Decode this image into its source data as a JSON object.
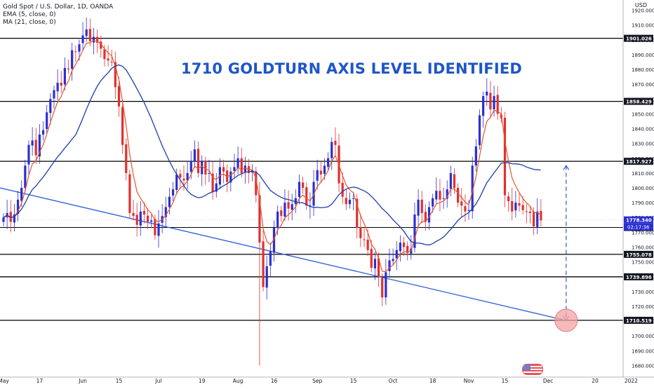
{
  "header": {
    "symbol_line": "Gold Spot / U.S. Dollar, 1D, OANDA",
    "ema_line": "EMA (5, close, 0)",
    "ma_line": "MA (21, close, 0)",
    "currency": "USD"
  },
  "annotation": {
    "headline": "1710 GOLDTURN AXIS LEVEL IDENTIFIED"
  },
  "colors": {
    "up": "#2b2fd1",
    "down": "#e0302f",
    "ema": "#e8552b",
    "ma": "#1c3fa8",
    "trendline": "#2a5bd7",
    "hline": "#000000",
    "target_circle": "#f4a3a3"
  },
  "chart_data": {
    "type": "candlestick",
    "title": "1710 GOLDTURN AXIS LEVEL IDENTIFIED",
    "ylim": [
      1675,
      1925
    ],
    "y_ticks": [
      1680,
      1690,
      1700,
      1710,
      1720,
      1730,
      1740,
      1750,
      1760,
      1770,
      1780,
      1790,
      1800,
      1810,
      1820,
      1830,
      1840,
      1850,
      1860,
      1870,
      1880,
      1890,
      1900,
      1910,
      1920
    ],
    "x_tick_labels": [
      {
        "label": "May",
        "index": 0
      },
      {
        "label": "17",
        "index": 10
      },
      {
        "label": "Jun",
        "index": 22
      },
      {
        "label": "15",
        "index": 32
      },
      {
        "label": "Jul",
        "index": 43
      },
      {
        "label": "19",
        "index": 55
      },
      {
        "label": "Aug",
        "index": 65
      },
      {
        "label": "16",
        "index": 75
      },
      {
        "label": "Sep",
        "index": 87
      },
      {
        "label": "15",
        "index": 97
      },
      {
        "label": "Oct",
        "index": 108
      },
      {
        "label": "18",
        "index": 119
      },
      {
        "label": "Nov",
        "index": 129
      },
      {
        "label": "15",
        "index": 139
      },
      {
        "label": "Dec",
        "index": 151
      },
      {
        "label": "20",
        "index": 164
      },
      {
        "label": "2022",
        "index": 174
      },
      {
        "label": "17",
        "index": 184
      }
    ],
    "horizontal_levels": [
      1901.026,
      1858.429,
      1817.927,
      1755.078,
      1739.896,
      1710.519
    ],
    "price_labels": [
      {
        "value": 1901.026,
        "text": "1901.026",
        "style": "black"
      },
      {
        "value": 1858.429,
        "text": "1858.429",
        "style": "black"
      },
      {
        "value": 1817.927,
        "text": "1817.927",
        "style": "black"
      },
      {
        "value": 1778.34,
        "text": "1778.340",
        "style": "blue"
      },
      {
        "value": 1773.234,
        "text": "1773.234",
        "style": "black"
      },
      {
        "value": 1755.078,
        "text": "1755.078",
        "style": "black"
      },
      {
        "value": 1739.896,
        "text": "1739.896",
        "style": "black"
      },
      {
        "value": 1710.519,
        "text": "1710.519",
        "style": "black"
      }
    ],
    "countdown": "02:17:36",
    "last_close_line": 1778.34,
    "trendline": [
      [
        -1,
        1800
      ],
      [
        155,
        1711
      ]
    ],
    "projection": {
      "index": 156,
      "from": 1815,
      "to": 1710.5
    },
    "target": {
      "index": 156,
      "value": 1710.5
    },
    "closes": [
      1780,
      1783,
      1777,
      1782,
      1792,
      1800,
      1815,
      1829,
      1832,
      1822,
      1836,
      1839,
      1851,
      1860,
      1866,
      1871,
      1869,
      1881,
      1880,
      1893,
      1892,
      1897,
      1903,
      1907,
      1899,
      1902,
      1898,
      1894,
      1887,
      1886,
      1885,
      1868,
      1855,
      1829,
      1810,
      1783,
      1781,
      1775,
      1784,
      1782,
      1777,
      1778,
      1768,
      1776,
      1781,
      1787,
      1794,
      1799,
      1809,
      1807,
      1805,
      1810,
      1818,
      1826,
      1810,
      1818,
      1809,
      1810,
      1797,
      1803,
      1814,
      1811,
      1804,
      1811,
      1814,
      1820,
      1810,
      1815,
      1810,
      1812,
      1795,
      1763,
      1733,
      1747,
      1757,
      1773,
      1784,
      1781,
      1790,
      1786,
      1789,
      1793,
      1804,
      1800,
      1788,
      1788,
      1804,
      1812,
      1809,
      1815,
      1820,
      1831,
      1829,
      1803,
      1794,
      1789,
      1792,
      1793,
      1773,
      1766,
      1765,
      1758,
      1746,
      1752,
      1740,
      1726,
      1743,
      1751,
      1752,
      1758,
      1763,
      1760,
      1756,
      1759,
      1782,
      1792,
      1783,
      1777,
      1787,
      1793,
      1798,
      1792,
      1793,
      1799,
      1810,
      1800,
      1790,
      1788,
      1784,
      1785,
      1815,
      1828,
      1849,
      1862,
      1865,
      1853,
      1862,
      1850,
      1847,
      1795,
      1791,
      1784,
      1790,
      1788,
      1785,
      1784,
      1783,
      1774,
      1784,
      1778
    ]
  }
}
